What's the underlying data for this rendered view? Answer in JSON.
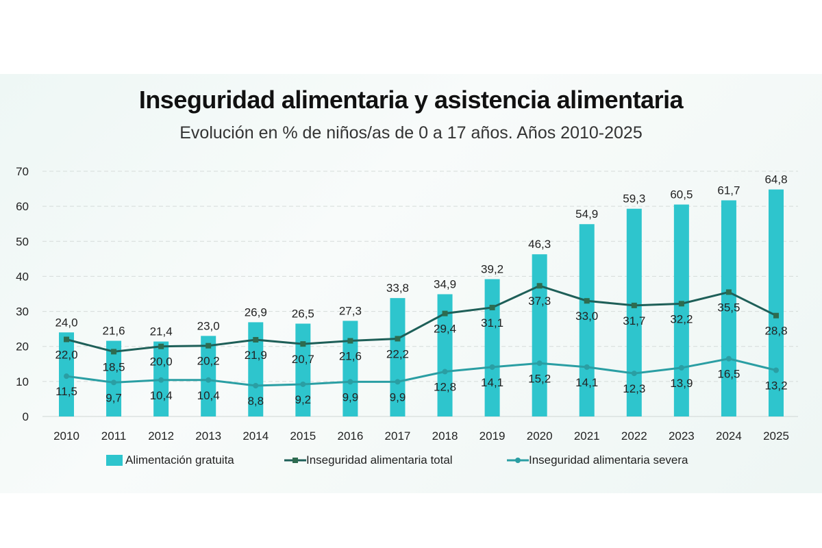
{
  "chart_data": {
    "type": "bar",
    "title": "Inseguridad alimentaria y asistencia alimentaria",
    "subtitle": "Evolución en % de niños/as de 0 a 17 años. Años 2010-2025",
    "categories": [
      "2010",
      "2011",
      "2012",
      "2013",
      "2014",
      "2015",
      "2016",
      "2017",
      "2018",
      "2019",
      "2020",
      "2021",
      "2022",
      "2023",
      "2024",
      "2025"
    ],
    "ylim": [
      0,
      70
    ],
    "yticks": [
      0,
      10,
      20,
      30,
      40,
      50,
      60,
      70
    ],
    "grid": true,
    "legend_placement": "bottom",
    "series": [
      {
        "name": "Alimentación gratuita",
        "kind": "bar",
        "color": "#2ec5cd",
        "values": [
          24.0,
          21.6,
          21.4,
          23.0,
          26.9,
          26.5,
          27.3,
          33.8,
          34.9,
          39.2,
          46.3,
          54.9,
          59.3,
          60.5,
          61.7,
          64.8
        ]
      },
      {
        "name": "Inseguridad alimentaria total",
        "kind": "line",
        "marker": "square",
        "color": "#1e5f58",
        "values": [
          22.0,
          18.5,
          20.0,
          20.2,
          21.9,
          20.7,
          21.6,
          22.2,
          29.4,
          31.1,
          37.3,
          33.0,
          31.7,
          32.2,
          35.5,
          28.8
        ]
      },
      {
        "name": "Inseguridad alimentaria severa",
        "kind": "line",
        "marker": "circle",
        "color": "#2a9ea3",
        "values": [
          11.5,
          9.7,
          10.4,
          10.4,
          8.8,
          9.2,
          9.9,
          9.9,
          12.8,
          14.1,
          15.2,
          14.1,
          12.3,
          13.9,
          16.5,
          13.2
        ]
      }
    ]
  }
}
